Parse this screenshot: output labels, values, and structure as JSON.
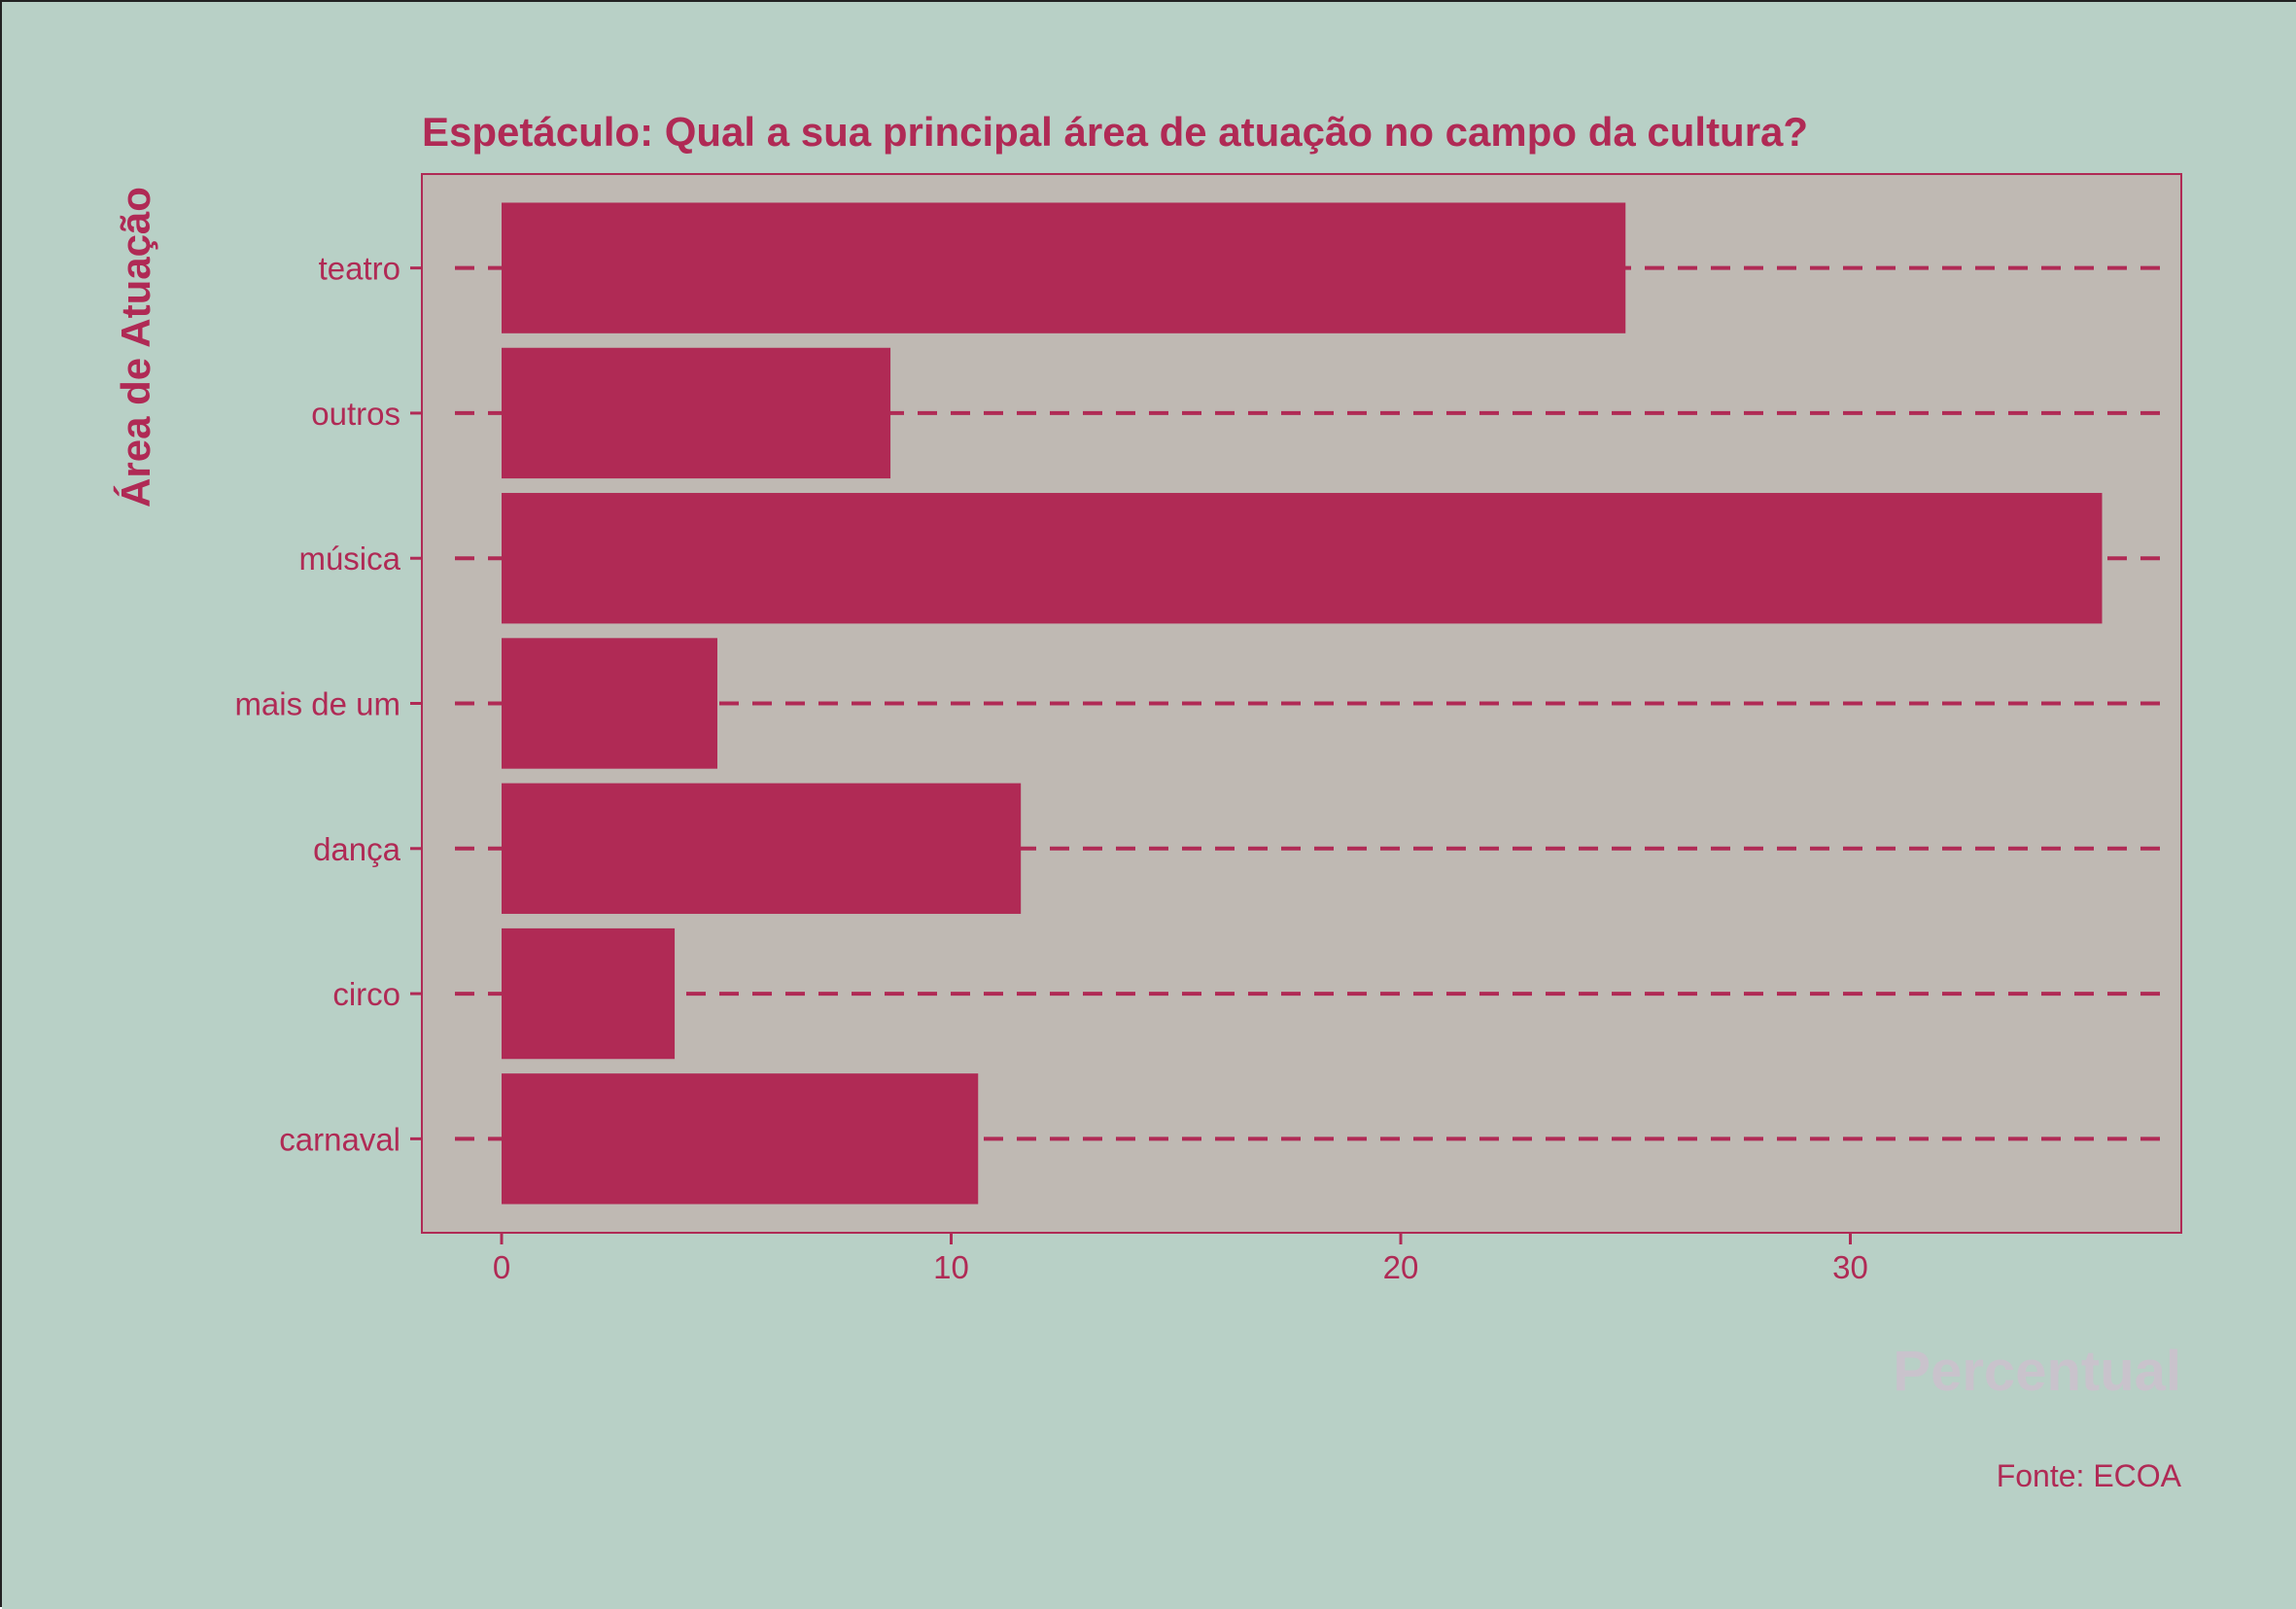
{
  "chart_data": {
    "type": "bar",
    "orientation": "horizontal",
    "title": "Espetáculo: Qual a sua principal área de atuação no campo da cultura?",
    "xlabel": "Percentual",
    "ylabel": "Área de Atuação",
    "caption": "Fonte: ECOA",
    "categories": [
      "teatro",
      "outros",
      "música",
      "mais de um",
      "dança",
      "circo",
      "carnaval"
    ],
    "values": [
      25.0,
      8.65,
      35.6,
      4.8,
      11.55,
      3.85,
      10.6
    ],
    "xlim": [
      0,
      37
    ],
    "xticks": [
      0,
      10,
      20,
      30
    ],
    "gridlines": "horizontal dashed",
    "colors": {
      "background": "#b8d0c6",
      "panel": "#bfb9b3",
      "bar": "#b02a55",
      "text": "#b02a55",
      "xlabel": "#c9c3cc"
    }
  }
}
